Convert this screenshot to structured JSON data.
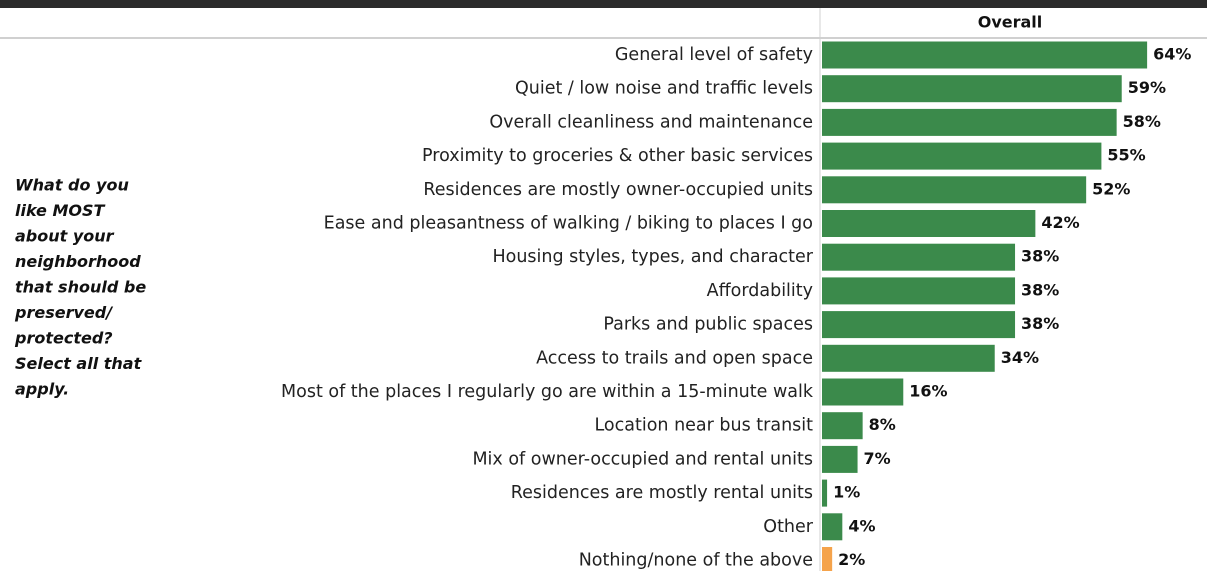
{
  "chart_data": {
    "type": "bar",
    "column_header": "Overall",
    "annotations": [
      "What do you",
      "like MOST",
      "about your",
      "neighborhood",
      "that should be",
      "preserved/",
      "protected?",
      "Select all that",
      "apply."
    ],
    "categories": [
      "General level of safety",
      "Quiet / low noise and traffic levels",
      "Overall cleanliness and maintenance",
      "Proximity to groceries & other basic services",
      "Residences are mostly owner-occupied units",
      "Ease and pleasantness of walking / biking to places I go",
      "Housing styles, types, and character",
      "Affordability",
      "Parks and public spaces",
      "Access to trails and open space",
      "Most of the places I regularly go are within a 15-minute walk",
      "Location near bus transit",
      "Mix of owner-occupied and rental units",
      "Residences are mostly rental units",
      "Other",
      "Nothing/none of the above"
    ],
    "values": [
      64,
      59,
      58,
      55,
      52,
      42,
      38,
      38,
      38,
      34,
      16,
      8,
      7,
      1,
      4,
      2
    ],
    "value_labels": [
      "64%",
      "59%",
      "58%",
      "55%",
      "52%",
      "42%",
      "38%",
      "38%",
      "38%",
      "34%",
      "16%",
      "8%",
      "7%",
      "1%",
      "4%",
      "2%"
    ],
    "colors": [
      "#3b8a4b",
      "#3b8a4b",
      "#3b8a4b",
      "#3b8a4b",
      "#3b8a4b",
      "#3b8a4b",
      "#3b8a4b",
      "#3b8a4b",
      "#3b8a4b",
      "#3b8a4b",
      "#3b8a4b",
      "#3b8a4b",
      "#3b8a4b",
      "#3b8a4b",
      "#3b8a4b",
      "#f5a34b"
    ]
  }
}
